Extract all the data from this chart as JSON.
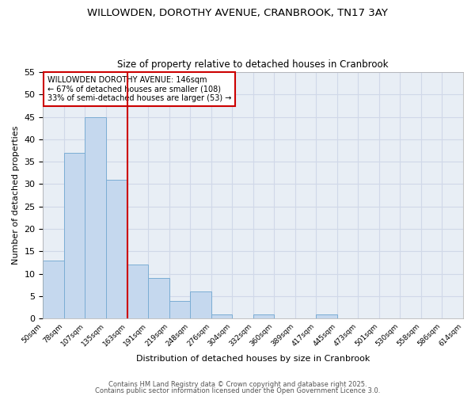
{
  "title1": "WILLOWDEN, DOROTHY AVENUE, CRANBROOK, TN17 3AY",
  "title2": "Size of property relative to detached houses in Cranbrook",
  "xlabel": "Distribution of detached houses by size in Cranbrook",
  "ylabel": "Number of detached properties",
  "bin_labels": [
    "50sqm",
    "78sqm",
    "107sqm",
    "135sqm",
    "163sqm",
    "191sqm",
    "219sqm",
    "248sqm",
    "276sqm",
    "304sqm",
    "332sqm",
    "360sqm",
    "389sqm",
    "417sqm",
    "445sqm",
    "473sqm",
    "501sqm",
    "530sqm",
    "558sqm",
    "586sqm",
    "614sqm"
  ],
  "values": [
    13,
    37,
    45,
    31,
    12,
    9,
    4,
    6,
    1,
    0,
    1,
    0,
    0,
    1,
    0,
    0,
    0,
    0,
    0,
    0
  ],
  "bar_color": "#c5d8ee",
  "bar_edge_color": "#7badd4",
  "vline_index": 4,
  "vline_color": "#cc0000",
  "annotation_text": "WILLOWDEN DOROTHY AVENUE: 146sqm\n← 67% of detached houses are smaller (108)\n33% of semi-detached houses are larger (53) →",
  "annotation_box_color": "#ffffff",
  "annotation_box_edge_color": "#cc0000",
  "ylim": [
    0,
    55
  ],
  "yticks": [
    0,
    5,
    10,
    15,
    20,
    25,
    30,
    35,
    40,
    45,
    50,
    55
  ],
  "plot_bg_color": "#e8eef5",
  "fig_bg_color": "#ffffff",
  "grid_color": "#d0d8e8",
  "footer1": "Contains HM Land Registry data © Crown copyright and database right 2025.",
  "footer2": "Contains public sector information licensed under the Open Government Licence 3.0."
}
